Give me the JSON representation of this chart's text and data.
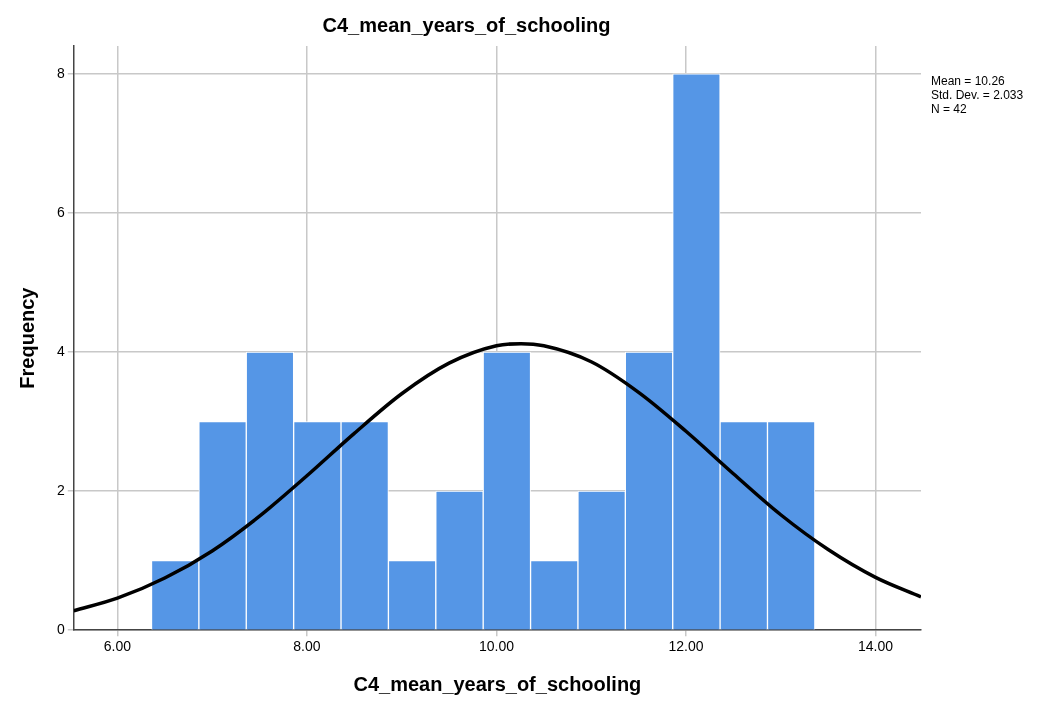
{
  "chart_data": {
    "type": "histogram",
    "title": "C4_mean_years_of_schooling",
    "xlabel": "C4_mean_years_of_schooling",
    "ylabel": "Frequency",
    "bins": [
      6.36,
      6.86,
      7.36,
      7.86,
      8.36,
      8.86,
      9.36,
      9.86,
      10.36,
      10.86,
      11.36,
      11.86,
      12.36,
      12.86,
      13.36
    ],
    "values": [
      1,
      3,
      4,
      3,
      3,
      1,
      2,
      4,
      1,
      2,
      4,
      8,
      3,
      3
    ],
    "color": "#5596e6",
    "series": [
      {
        "type": "line",
        "color": "#000000",
        "x": [
          5.54,
          6,
          6.5,
          7,
          7.5,
          8,
          8.5,
          9,
          9.5,
          10,
          10.26,
          10.5,
          11,
          11.5,
          12,
          12.5,
          13,
          13.5,
          14,
          14.48
        ],
        "values": [
          0.28,
          0.46,
          0.75,
          1.14,
          1.64,
          2.22,
          2.83,
          3.4,
          3.84,
          4.09,
          4.12,
          4.09,
          3.86,
          3.42,
          2.86,
          2.25,
          1.66,
          1.16,
          0.76,
          0.48
        ]
      }
    ],
    "xlim": [
      5.54,
      14.48
    ],
    "xticks": [
      {
        "value": 6,
        "label": "6.00"
      },
      {
        "value": 8,
        "label": "8.00"
      },
      {
        "value": 10,
        "label": "10.00"
      },
      {
        "value": 12,
        "label": "12.00"
      },
      {
        "value": 14,
        "label": "14.00"
      }
    ],
    "ylim": [
      0,
      8.4
    ],
    "yticks": [
      0,
      2,
      4,
      6,
      8
    ],
    "grid": true,
    "legend": false,
    "annotations": [
      "Mean = 10.26",
      "Std. Dev. = 2.033",
      "N = 42"
    ]
  }
}
